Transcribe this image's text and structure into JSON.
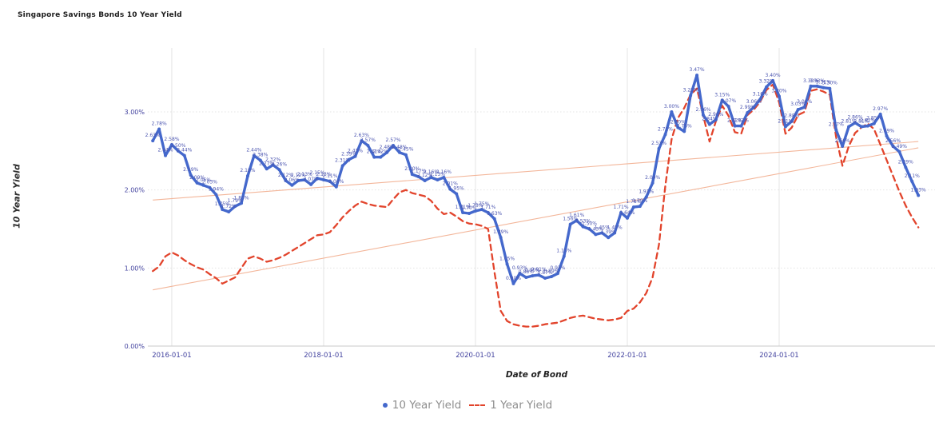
{
  "title": "Singapore Savings Bonds 10 Year Yield",
  "axes": {
    "y_title": "10 Year Yield",
    "x_title": "Date of Bond",
    "y_ticks": [
      "0.00%",
      "1.00%",
      "2.00%",
      "3.00%"
    ],
    "x_ticks": [
      "2016-01-01",
      "2018-01-01",
      "2020-01-01",
      "2022-01-01",
      "2024-01-01"
    ]
  },
  "legend": {
    "items": [
      {
        "label": "10 Year Yield",
        "marker": "dot",
        "color": "#4468CC"
      },
      {
        "label": "1 Year Yield",
        "marker": "dashes",
        "color": "#E2442C"
      }
    ]
  },
  "colors": {
    "line_10y": "#4468CC",
    "line_1y": "#E2442C",
    "trend": "#F3B69A",
    "grid": "#E4E4E4",
    "axis_line": "#C9C9C9",
    "tick_label": "#43439F",
    "data_label": "#4B55B0",
    "legend_text": "#8E8E8E",
    "title_text": "#1B1B1B"
  },
  "chart_data": {
    "type": "line",
    "title": "Singapore Savings Bonds 10 Year Yield",
    "xlabel": "Date of Bond",
    "ylabel": "10 Year Yield",
    "ylim": [
      0,
      3.8
    ],
    "grid": true,
    "legend_position": "bottom-center",
    "label_format": "0.00%",
    "dates": [
      "2015-10-01",
      "2015-11-01",
      "2015-12-01",
      "2016-01-01",
      "2016-02-01",
      "2016-03-01",
      "2016-04-01",
      "2016-05-01",
      "2016-06-01",
      "2016-07-01",
      "2016-08-01",
      "2016-09-01",
      "2016-10-01",
      "2016-11-01",
      "2016-12-01",
      "2017-01-01",
      "2017-02-01",
      "2017-03-01",
      "2017-04-01",
      "2017-05-01",
      "2017-06-01",
      "2017-07-01",
      "2017-08-01",
      "2017-09-01",
      "2017-10-01",
      "2017-11-01",
      "2017-12-01",
      "2018-01-01",
      "2018-02-01",
      "2018-03-01",
      "2018-04-01",
      "2018-05-01",
      "2018-06-01",
      "2018-07-01",
      "2018-08-01",
      "2018-09-01",
      "2018-10-01",
      "2018-11-01",
      "2018-12-01",
      "2019-01-01",
      "2019-02-01",
      "2019-03-01",
      "2019-04-01",
      "2019-05-01",
      "2019-06-01",
      "2019-07-01",
      "2019-08-01",
      "2019-09-01",
      "2019-10-01",
      "2019-11-01",
      "2019-12-01",
      "2020-01-01",
      "2020-02-01",
      "2020-03-01",
      "2020-04-01",
      "2020-05-01",
      "2020-06-01",
      "2020-07-01",
      "2020-08-01",
      "2020-09-01",
      "2020-10-01",
      "2020-11-01",
      "2020-12-01",
      "2021-01-01",
      "2021-02-01",
      "2021-03-01",
      "2021-04-01",
      "2021-05-01",
      "2021-06-01",
      "2021-07-01",
      "2021-08-01",
      "2021-09-01",
      "2021-10-01",
      "2021-11-01",
      "2021-12-01",
      "2022-01-01",
      "2022-02-01",
      "2022-03-01",
      "2022-04-01",
      "2022-05-01",
      "2022-06-01",
      "2022-07-01",
      "2022-08-01",
      "2022-09-01",
      "2022-10-01",
      "2022-11-01",
      "2022-12-01",
      "2023-01-01",
      "2023-02-01",
      "2023-03-01",
      "2023-04-01",
      "2023-05-01",
      "2023-06-01",
      "2023-07-01",
      "2023-08-01",
      "2023-09-01",
      "2023-10-01",
      "2023-11-01",
      "2023-12-01",
      "2024-01-01",
      "2024-02-01",
      "2024-03-01",
      "2024-04-01",
      "2024-05-01",
      "2024-06-01",
      "2024-07-01",
      "2024-08-01",
      "2024-09-01",
      "2024-10-01",
      "2024-11-01",
      "2024-12-01",
      "2025-01-01",
      "2025-02-01",
      "2025-03-01",
      "2025-04-01",
      "2025-05-01",
      "2025-06-01",
      "2025-07-01",
      "2025-08-01",
      "2025-09-01",
      "2025-10-01",
      "2025-11-01"
    ],
    "series": [
      {
        "name": "10 Year Yield",
        "color": "#4468CC",
        "style": "solid",
        "markers": true,
        "point_labels": true,
        "values": [
          2.63,
          2.78,
          2.44,
          2.58,
          2.5,
          2.44,
          2.19,
          2.09,
          2.06,
          2.03,
          1.94,
          1.75,
          1.72,
          1.79,
          1.83,
          2.18,
          2.44,
          2.38,
          2.27,
          2.32,
          2.26,
          2.12,
          2.06,
          2.12,
          2.13,
          2.07,
          2.15,
          2.13,
          2.11,
          2.04,
          2.31,
          2.39,
          2.43,
          2.63,
          2.57,
          2.42,
          2.42,
          2.48,
          2.57,
          2.48,
          2.45,
          2.2,
          2.17,
          2.12,
          2.16,
          2.13,
          2.16,
          2.01,
          1.95,
          1.71,
          1.7,
          1.73,
          1.75,
          1.71,
          1.63,
          1.39,
          1.05,
          0.8,
          0.93,
          0.88,
          0.9,
          0.91,
          0.87,
          0.89,
          0.93,
          1.15,
          1.56,
          1.61,
          1.53,
          1.5,
          1.43,
          1.45,
          1.39,
          1.45,
          1.71,
          1.64,
          1.78,
          1.79,
          1.91,
          2.09,
          2.53,
          2.71,
          3.0,
          2.8,
          2.75,
          3.21,
          3.47,
          2.96,
          2.84,
          2.9,
          3.15,
          3.07,
          2.82,
          2.82,
          2.99,
          3.06,
          3.16,
          3.32,
          3.4,
          3.2,
          2.81,
          2.88,
          3.03,
          3.06,
          3.33,
          3.33,
          3.31,
          3.3,
          2.77,
          2.56,
          2.81,
          2.86,
          2.81,
          2.82,
          2.85,
          2.97,
          2.69,
          2.56,
          2.49,
          2.29,
          2.11,
          1.93
        ]
      },
      {
        "name": "1 Year Yield",
        "color": "#E2442C",
        "style": "dashed",
        "markers": false,
        "point_labels": false,
        "values": [
          0.96,
          1.02,
          1.15,
          1.2,
          1.16,
          1.1,
          1.05,
          1.01,
          0.98,
          0.92,
          0.87,
          0.8,
          0.84,
          0.88,
          1.0,
          1.12,
          1.15,
          1.12,
          1.08,
          1.1,
          1.13,
          1.17,
          1.22,
          1.27,
          1.32,
          1.37,
          1.42,
          1.43,
          1.46,
          1.55,
          1.65,
          1.73,
          1.8,
          1.85,
          1.82,
          1.8,
          1.79,
          1.78,
          1.88,
          1.97,
          2.0,
          1.96,
          1.94,
          1.92,
          1.86,
          1.76,
          1.69,
          1.71,
          1.66,
          1.6,
          1.57,
          1.56,
          1.54,
          1.5,
          0.95,
          0.45,
          0.32,
          0.28,
          0.26,
          0.25,
          0.25,
          0.26,
          0.28,
          0.29,
          0.3,
          0.33,
          0.36,
          0.38,
          0.39,
          0.37,
          0.35,
          0.34,
          0.33,
          0.34,
          0.36,
          0.45,
          0.48,
          0.56,
          0.68,
          0.88,
          1.3,
          2.05,
          2.65,
          2.92,
          3.05,
          3.22,
          3.3,
          2.95,
          2.62,
          2.88,
          3.08,
          2.95,
          2.74,
          2.72,
          2.96,
          3.03,
          3.13,
          3.28,
          3.35,
          3.12,
          2.72,
          2.8,
          2.96,
          3.0,
          3.27,
          3.29,
          3.26,
          3.22,
          2.68,
          2.31,
          2.56,
          2.73,
          2.8,
          2.85,
          2.78,
          2.58,
          2.38,
          2.18,
          1.98,
          1.8,
          1.65,
          1.52
        ]
      }
    ],
    "trendlines": [
      {
        "name": "10 Year Yield trend",
        "start_value": 1.87,
        "end_value": 2.62,
        "color": "#F3B69A"
      },
      {
        "name": "1 Year Yield trend",
        "start_value": 0.72,
        "end_value": 2.54,
        "color": "#F3B69A"
      }
    ]
  }
}
